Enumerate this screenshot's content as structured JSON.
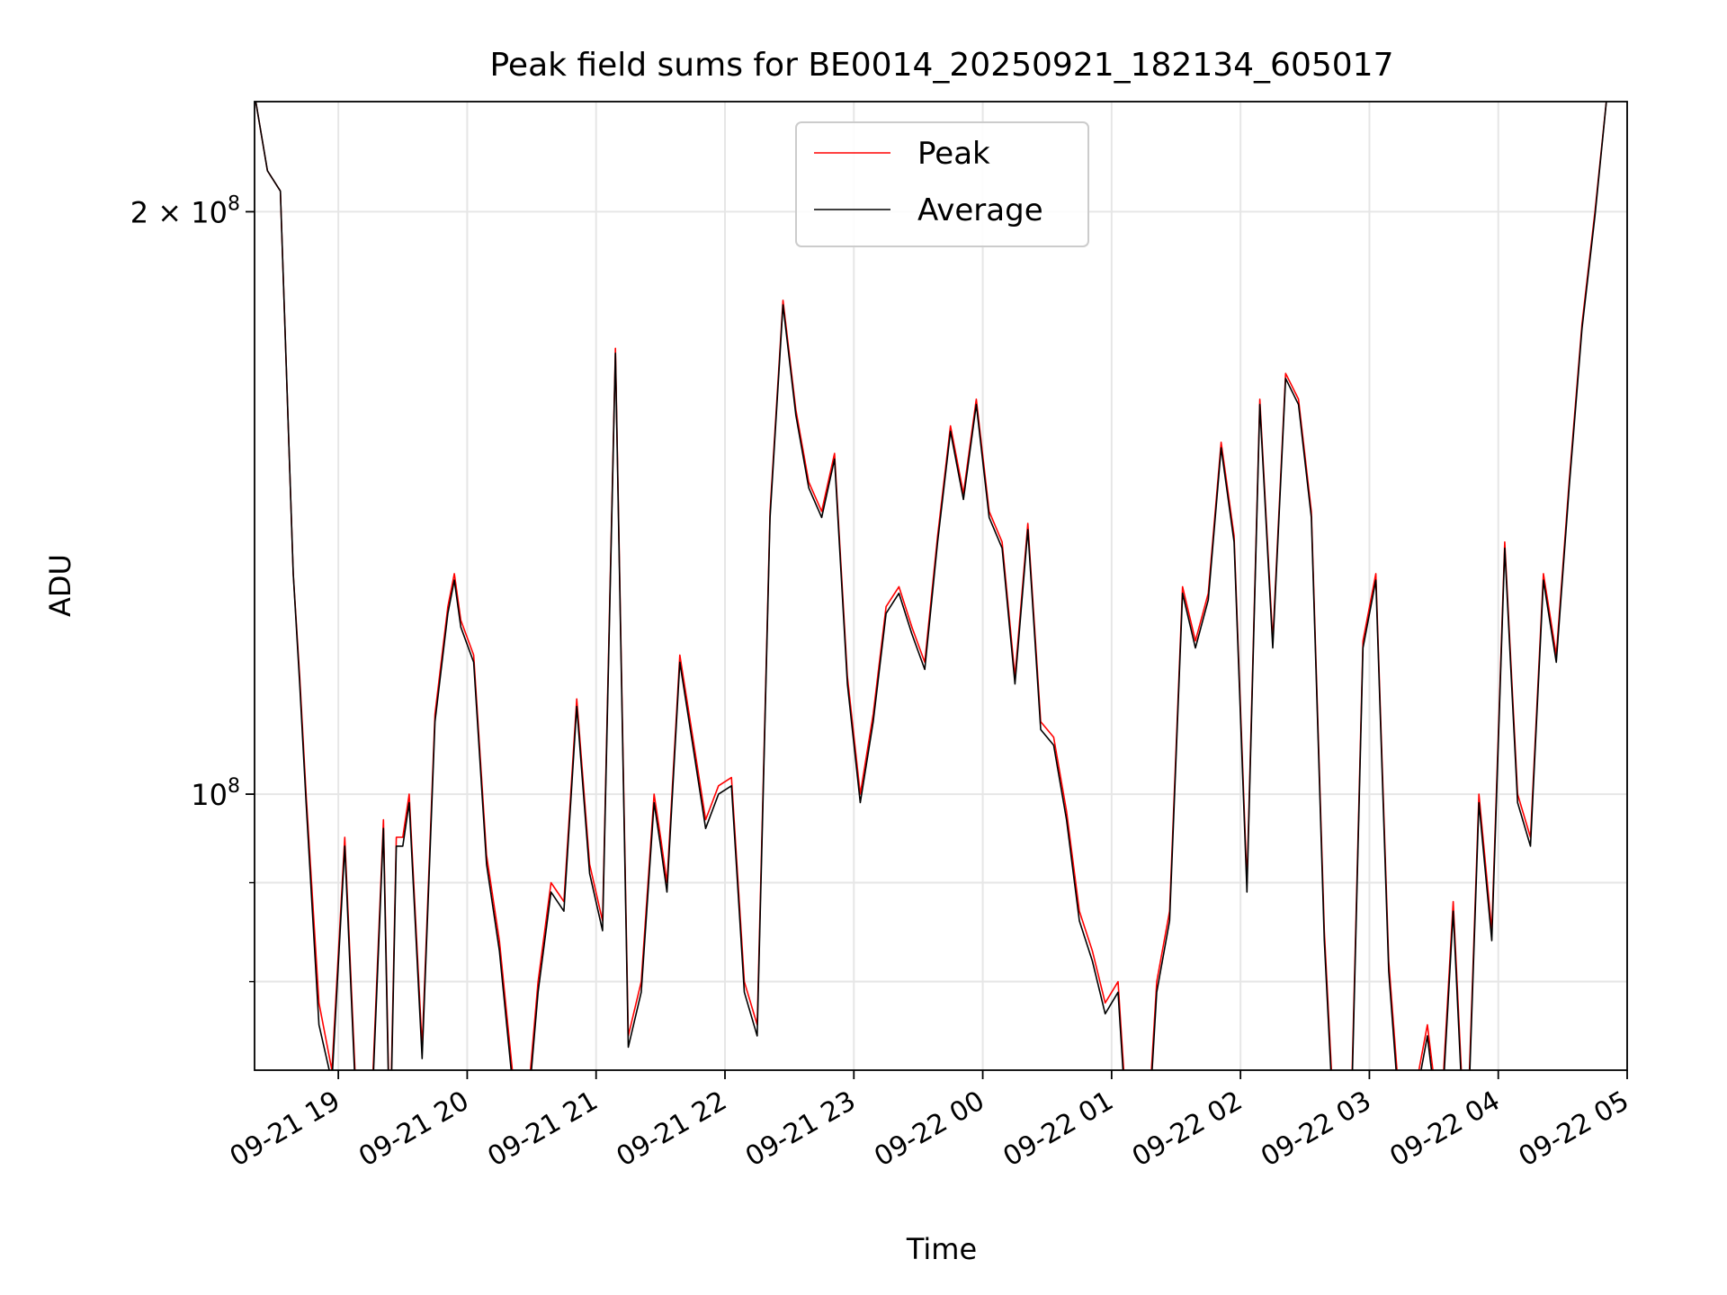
{
  "chart_data": {
    "type": "line",
    "title": "Peak field sums for BE0014_20250921_182134_605017",
    "xlabel": "Time",
    "ylabel": "ADU",
    "y_scale": "log",
    "grid": true,
    "legend_position": "top-center",
    "x_range": [
      "2025-09-21 18:21",
      "2025-09-22 05:00"
    ],
    "y_range": [
      72000000,
      228000000
    ],
    "x_ticks": [
      "09-21 19",
      "09-21 20",
      "09-21 21",
      "09-21 22",
      "09-21 23",
      "09-22 00",
      "09-22 01",
      "09-22 02",
      "09-22 03",
      "09-22 04",
      "09-22 05"
    ],
    "y_tick_labels": [
      {
        "value": 200000000,
        "label": "2 × 10^8",
        "mantissa": "2 × 10",
        "exponent": "8"
      },
      {
        "value": 100000000,
        "label": "10^8",
        "mantissa": "10",
        "exponent": "8"
      }
    ],
    "y_minor_ticks": [
      80000000,
      90000000
    ],
    "x_hours": [
      0,
      0.1,
      0.2,
      0.3,
      0.35,
      0.4,
      0.5,
      0.6,
      0.7,
      0.8,
      0.9,
      1.0,
      1.05,
      1.1,
      1.15,
      1.2,
      1.3,
      1.4,
      1.5,
      1.55,
      1.6,
      1.7,
      1.8,
      1.9,
      2.0,
      2.1,
      2.2,
      2.3,
      2.4,
      2.5,
      2.6,
      2.7,
      2.8,
      2.9,
      3.0,
      3.1,
      3.15,
      3.2,
      3.3,
      3.4,
      3.5,
      3.6,
      3.7,
      3.8,
      3.9,
      4.0,
      4.1,
      4.2,
      4.3,
      4.4,
      4.5,
      4.6,
      4.7,
      4.8,
      4.9,
      5.0,
      5.1,
      5.2,
      5.3,
      5.4,
      5.5,
      5.6,
      5.7,
      5.8,
      5.9,
      6.0,
      6.1,
      6.2,
      6.3,
      6.4,
      6.5,
      6.6,
      6.7,
      6.8,
      6.9,
      7.0,
      7.1,
      7.2,
      7.3,
      7.4,
      7.5,
      7.6,
      7.7,
      7.8,
      7.9,
      8.0,
      8.1,
      8.2,
      8.3,
      8.4,
      8.5,
      8.6,
      8.7,
      8.8,
      8.9,
      9.0,
      9.1,
      9.2,
      9.3,
      9.4,
      9.5,
      9.6,
      9.7,
      9.8,
      9.9,
      10.0,
      10.1,
      10.2,
      10.3,
      10.4,
      10.5,
      10.55,
      10.65
    ],
    "series": [
      {
        "name": "Peak",
        "color": "#ff0000",
        "values": [
          230000000,
          210000000,
          205000000,
          130000000,
          115000000,
          100000000,
          78000000,
          72000000,
          95000000,
          67000000,
          67000000,
          97000000,
          66000000,
          95000000,
          95000000,
          100000000,
          74000000,
          110000000,
          125000000,
          130000000,
          123000000,
          118000000,
          93000000,
          84000000,
          72000000,
          67000000,
          80000000,
          90000000,
          88000000,
          112000000,
          92000000,
          86000000,
          170000000,
          75000000,
          80000000,
          100000000,
          95000000,
          90000000,
          118000000,
          107000000,
          97000000,
          101000000,
          102000000,
          80000000,
          76000000,
          140000000,
          180000000,
          158000000,
          145000000,
          140000000,
          150000000,
          115000000,
          100000000,
          110000000,
          125000000,
          128000000,
          122000000,
          117000000,
          136000000,
          155000000,
          143000000,
          160000000,
          140000000,
          135000000,
          115000000,
          138000000,
          109000000,
          107000000,
          98000000,
          87000000,
          83000000,
          78000000,
          80000000,
          63000000,
          62000000,
          80000000,
          87000000,
          128000000,
          120000000,
          127000000,
          152000000,
          136000000,
          90000000,
          160000000,
          120000000,
          165000000,
          160000000,
          140000000,
          85000000,
          63000000,
          65000000,
          120000000,
          130000000,
          82000000,
          67000000,
          70000000,
          76000000,
          67000000,
          88000000,
          64000000,
          100000000,
          85000000,
          135000000,
          100000000,
          95000000,
          130000000,
          118000000,
          145000000,
          175000000,
          200000000,
          232000000,
          232000000,
          232000000
        ]
      },
      {
        "name": "Average",
        "color": "#000000",
        "values": [
          230000000,
          210000000,
          205000000,
          130000000,
          114000000,
          99000000,
          76000000,
          71000000,
          94000000,
          66000000,
          66000000,
          96000000,
          65000000,
          94000000,
          94000000,
          99000000,
          73000000,
          109000000,
          124000000,
          129000000,
          122000000,
          117000000,
          92000000,
          83000000,
          71000000,
          66000000,
          79000000,
          89000000,
          87000000,
          111000000,
          91000000,
          85000000,
          169000000,
          74000000,
          79000000,
          99000000,
          94000000,
          89000000,
          117000000,
          106000000,
          96000000,
          100000000,
          101000000,
          79000000,
          75000000,
          139000000,
          179000000,
          157000000,
          144000000,
          139000000,
          149000000,
          114000000,
          99000000,
          109000000,
          124000000,
          127000000,
          121000000,
          116000000,
          135000000,
          154000000,
          142000000,
          159000000,
          139000000,
          134000000,
          114000000,
          137000000,
          108000000,
          106000000,
          97000000,
          86000000,
          82000000,
          77000000,
          79000000,
          62000000,
          61000000,
          79000000,
          86000000,
          127000000,
          119000000,
          126000000,
          151000000,
          135000000,
          89000000,
          159000000,
          119000000,
          164000000,
          159000000,
          139000000,
          84000000,
          62000000,
          64000000,
          119000000,
          129000000,
          81000000,
          66000000,
          69000000,
          75000000,
          66000000,
          87000000,
          63000000,
          99000000,
          84000000,
          134000000,
          99000000,
          94000000,
          129000000,
          117000000,
          144000000,
          174000000,
          199000000,
          232000000,
          232000000,
          232000000
        ]
      }
    ]
  }
}
